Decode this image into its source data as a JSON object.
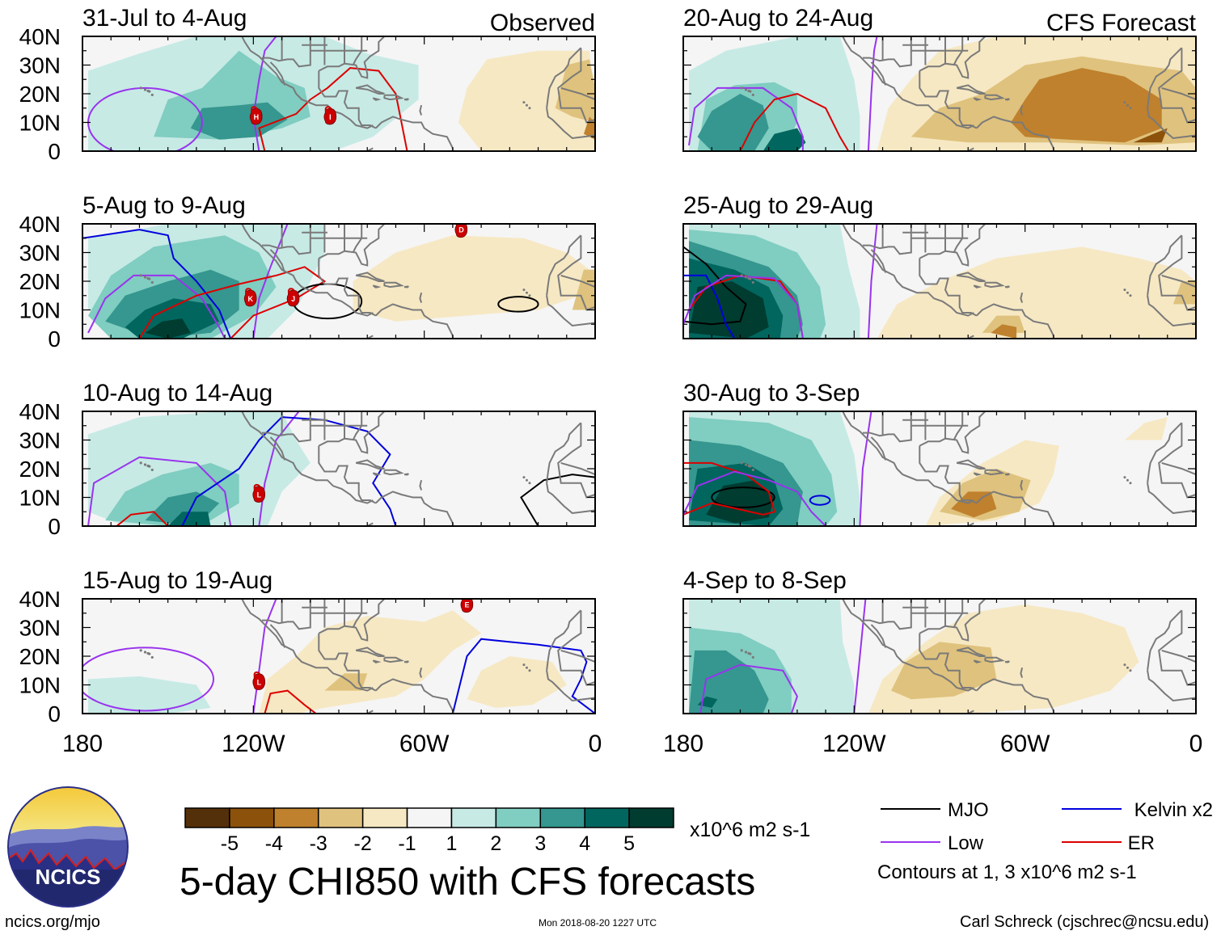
{
  "title": "5-day CHI850 with CFS forecasts",
  "footer": {
    "left": "ncics.org/mjo",
    "center": "Mon 2018-08-20 1227 UTC",
    "right": "Carl Schreck (cjschrec@ncsu.edu)"
  },
  "logo": {
    "text": "NCICS"
  },
  "column_headers": {
    "observed": "Observed",
    "forecast": "CFS Forecast"
  },
  "axes": {
    "y_ticks": [
      "40N",
      "30N",
      "20N",
      "10N",
      "0"
    ],
    "x_ticks": [
      "180",
      "120W",
      "60W",
      "0"
    ]
  },
  "panels": [
    {
      "id": "obs1",
      "column": "observed",
      "period": "31-Jul to 4-Aug",
      "storms": [
        {
          "label": "H",
          "lon": -119,
          "lat": 12
        },
        {
          "label": "I",
          "lon": -93,
          "lat": 12
        }
      ]
    },
    {
      "id": "obs2",
      "column": "observed",
      "period": "5-Aug to 9-Aug",
      "storms": [
        {
          "label": "K",
          "lon": -121,
          "lat": 14
        },
        {
          "label": "J",
          "lon": -106,
          "lat": 14
        },
        {
          "label": "D",
          "lon": -47,
          "lat": 38
        }
      ]
    },
    {
      "id": "obs3",
      "column": "observed",
      "period": "10-Aug to 14-Aug",
      "storms": [
        {
          "label": "L",
          "lon": -118,
          "lat": 11
        }
      ]
    },
    {
      "id": "obs4",
      "column": "observed",
      "period": "15-Aug to 19-Aug",
      "storms": [
        {
          "label": "L",
          "lon": -118,
          "lat": 11
        },
        {
          "label": "E",
          "lon": -45,
          "lat": 38
        }
      ]
    },
    {
      "id": "fc1",
      "column": "forecast",
      "period": "20-Aug to 24-Aug",
      "storms": []
    },
    {
      "id": "fc2",
      "column": "forecast",
      "period": "25-Aug to 29-Aug",
      "storms": []
    },
    {
      "id": "fc3",
      "column": "forecast",
      "period": "30-Aug to 3-Sep",
      "storms": []
    },
    {
      "id": "fc4",
      "column": "forecast",
      "period": "4-Sep to 8-Sep",
      "storms": []
    }
  ],
  "colorbar": {
    "labels": [
      "-5",
      "-4",
      "-3",
      "-2",
      "-1",
      "1",
      "2",
      "3",
      "4",
      "5"
    ],
    "colors": [
      "#54300a",
      "#8c510a",
      "#bf812d",
      "#dfc27d",
      "#f6e8c3",
      "#f5f5f5",
      "#c7eae5",
      "#80cdc1",
      "#35978f",
      "#01665e",
      "#003c30"
    ],
    "units": "x10^6 m2 s-1"
  },
  "legend": {
    "items": [
      {
        "label": "MJO",
        "color": "#000000"
      },
      {
        "label": "Kelvin x2",
        "color": "#0000dd"
      },
      {
        "label": "Low",
        "color": "#9933ee"
      },
      {
        "label": "ER",
        "color": "#dd0000"
      }
    ],
    "contours_note": "Contours at 1, 3 x10^6 m2 s-1"
  }
}
